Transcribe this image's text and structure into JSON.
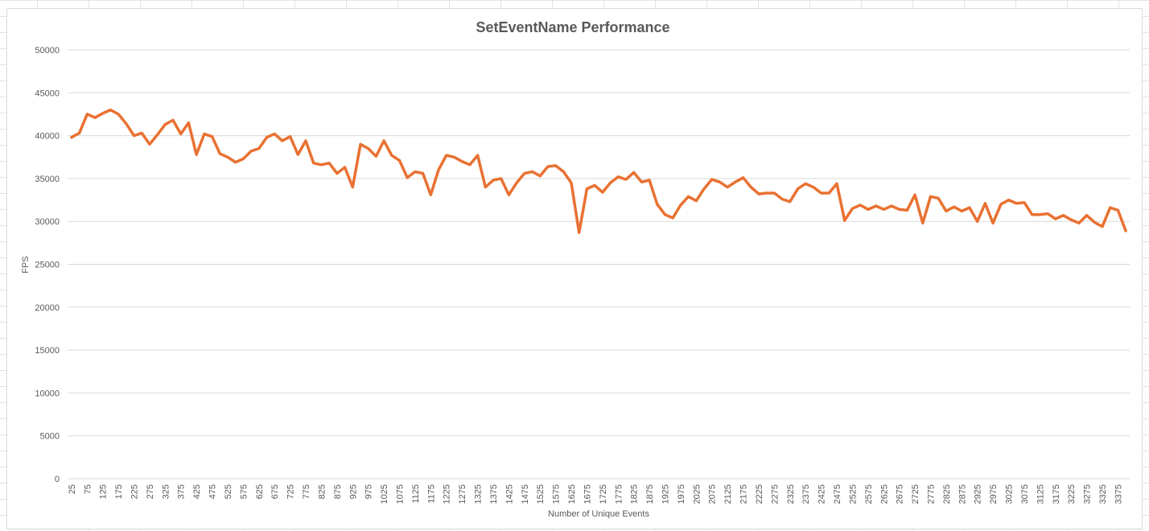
{
  "colors": {
    "line": "#E97132",
    "gridline": "#d9d9d9",
    "text": "#595959",
    "cell_grid": "#e3e3e3"
  },
  "chart_data": {
    "type": "line",
    "title": "SetEventName Performance",
    "xlabel": "Number of Unique Events",
    "ylabel": "FPS",
    "ylim": [
      0,
      50000
    ],
    "yticks": [
      0,
      5000,
      10000,
      15000,
      20000,
      25000,
      30000,
      35000,
      40000,
      45000,
      50000
    ],
    "xtick_labels": [
      25,
      75,
      125,
      175,
      225,
      275,
      325,
      375,
      425,
      475,
      525,
      575,
      625,
      675,
      725,
      775,
      825,
      875,
      925,
      975,
      1025,
      1075,
      1125,
      1175,
      1225,
      1275,
      1325,
      1375,
      1425,
      1475,
      1525,
      1575,
      1625,
      1675,
      1725,
      1775,
      1825,
      1875,
      1925,
      1975,
      2025,
      2075,
      2125,
      2175,
      2225,
      2275,
      2325,
      2375,
      2425,
      2475,
      2525,
      2575,
      2625,
      2675,
      2725,
      2775,
      2825,
      2875,
      2925,
      2975,
      3025,
      3075,
      3125,
      3175,
      3225,
      3275,
      3325,
      3375
    ],
    "grid": true,
    "legend": "none",
    "series": [
      {
        "x": [
          25,
          50,
          75,
          100,
          125,
          150,
          175,
          200,
          225,
          250,
          275,
          300,
          325,
          350,
          375,
          400,
          425,
          450,
          475,
          500,
          525,
          550,
          575,
          600,
          625,
          650,
          675,
          700,
          725,
          750,
          775,
          800,
          825,
          850,
          875,
          900,
          925,
          950,
          975,
          1000,
          1025,
          1050,
          1075,
          1100,
          1125,
          1150,
          1175,
          1200,
          1225,
          1250,
          1275,
          1300,
          1325,
          1350,
          1375,
          1400,
          1425,
          1450,
          1475,
          1500,
          1525,
          1550,
          1575,
          1600,
          1625,
          1650,
          1675,
          1700,
          1725,
          1750,
          1775,
          1800,
          1825,
          1850,
          1875,
          1900,
          1925,
          1950,
          1975,
          2000,
          2025,
          2050,
          2075,
          2100,
          2125,
          2150,
          2175,
          2200,
          2225,
          2250,
          2275,
          2300,
          2325,
          2350,
          2375,
          2400,
          2425,
          2450,
          2475,
          2500,
          2525,
          2550,
          2575,
          2600,
          2625,
          2650,
          2675,
          2700,
          2725,
          2750,
          2775,
          2800,
          2825,
          2850,
          2875,
          2900,
          2925,
          2950,
          2975,
          3000,
          3025,
          3050,
          3075,
          3100,
          3125,
          3150,
          3175,
          3200,
          3225,
          3250,
          3275,
          3300,
          3325,
          3350,
          3375,
          3400
        ],
        "values": [
          39800,
          40300,
          42500,
          42100,
          42600,
          43000,
          42500,
          41400,
          40000,
          40300,
          39000,
          40100,
          41300,
          41800,
          40200,
          41500,
          37800,
          40200,
          39900,
          37900,
          37500,
          36900,
          37300,
          38200,
          38500,
          39800,
          40200,
          39400,
          39900,
          37800,
          39400,
          36800,
          36600,
          36800,
          35600,
          36300,
          34000,
          39000,
          38500,
          37600,
          39400,
          37700,
          37100,
          35100,
          35800,
          35600,
          33100,
          36000,
          37700,
          37500,
          37000,
          36600,
          37700,
          34000,
          34800,
          35000,
          33100,
          34500,
          35600,
          35800,
          35300,
          36400,
          36500,
          35800,
          34500,
          28700,
          33800,
          34200,
          33400,
          34500,
          35200,
          34900,
          35700,
          34600,
          34800,
          32000,
          30800,
          30400,
          31900,
          32900,
          32400,
          33800,
          34900,
          34600,
          34000,
          34600,
          35100,
          34000,
          33200,
          33300,
          33300,
          32600,
          32300,
          33800,
          34400,
          34000,
          33300,
          33300,
          34400,
          30100,
          31500,
          31900,
          31400,
          31800,
          31400,
          31800,
          31400,
          31300,
          33100,
          29800,
          32900,
          32700,
          31200,
          31700,
          31200,
          31600,
          30000,
          32100,
          29800,
          32000,
          32500,
          32100,
          32200,
          30800,
          30800,
          30900,
          30300,
          30700,
          30200,
          29800,
          30700,
          29900,
          29400,
          31600,
          31300,
          28900
        ]
      }
    ]
  }
}
